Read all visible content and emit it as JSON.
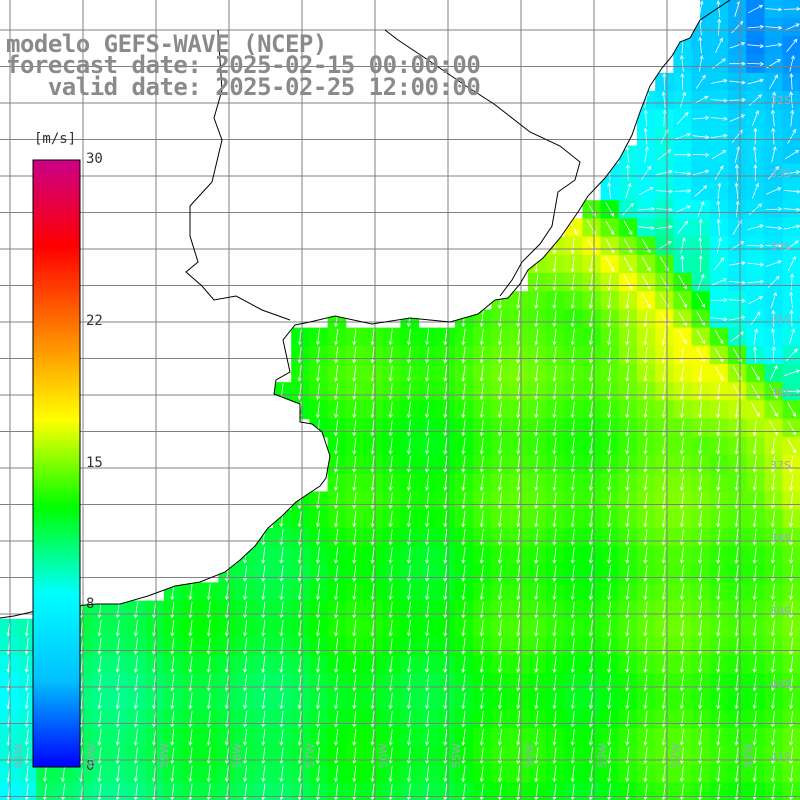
{
  "title": {
    "line1": "modelo GEFS-WAVE (NCEP)",
    "line2": "forecast date: 2025-02-15 00:00:00",
    "line3": "   valid date: 2025-02-25 12:00:00"
  },
  "colorbar": {
    "unit": "[m/s]",
    "ticks": [
      {
        "label": "30",
        "value": 30
      },
      {
        "label": "22",
        "value": 22
      },
      {
        "label": "15",
        "value": 15
      },
      {
        "label": "8",
        "value": 8
      },
      {
        "label": "0",
        "value": 0
      }
    ],
    "range": [
      0,
      30
    ],
    "colors": [
      "#0000ff",
      "#00c0ff",
      "#00ffff",
      "#00ff00",
      "#ffff00",
      "#ff8000",
      "#ff0000",
      "#cc0088"
    ]
  },
  "map": {
    "lat_labels": [
      "32S",
      "33S",
      "34S",
      "35S",
      "36S",
      "37S",
      "38S",
      "39S",
      "40S",
      "41S"
    ],
    "lon_labels": [
      "61W",
      "60W",
      "59W",
      "58W",
      "57W",
      "56W",
      "55W",
      "54W",
      "53W",
      "52W",
      "51W"
    ],
    "land_color": "#ffffff",
    "grid_color": "#808080",
    "coast_color": "#000000"
  }
}
